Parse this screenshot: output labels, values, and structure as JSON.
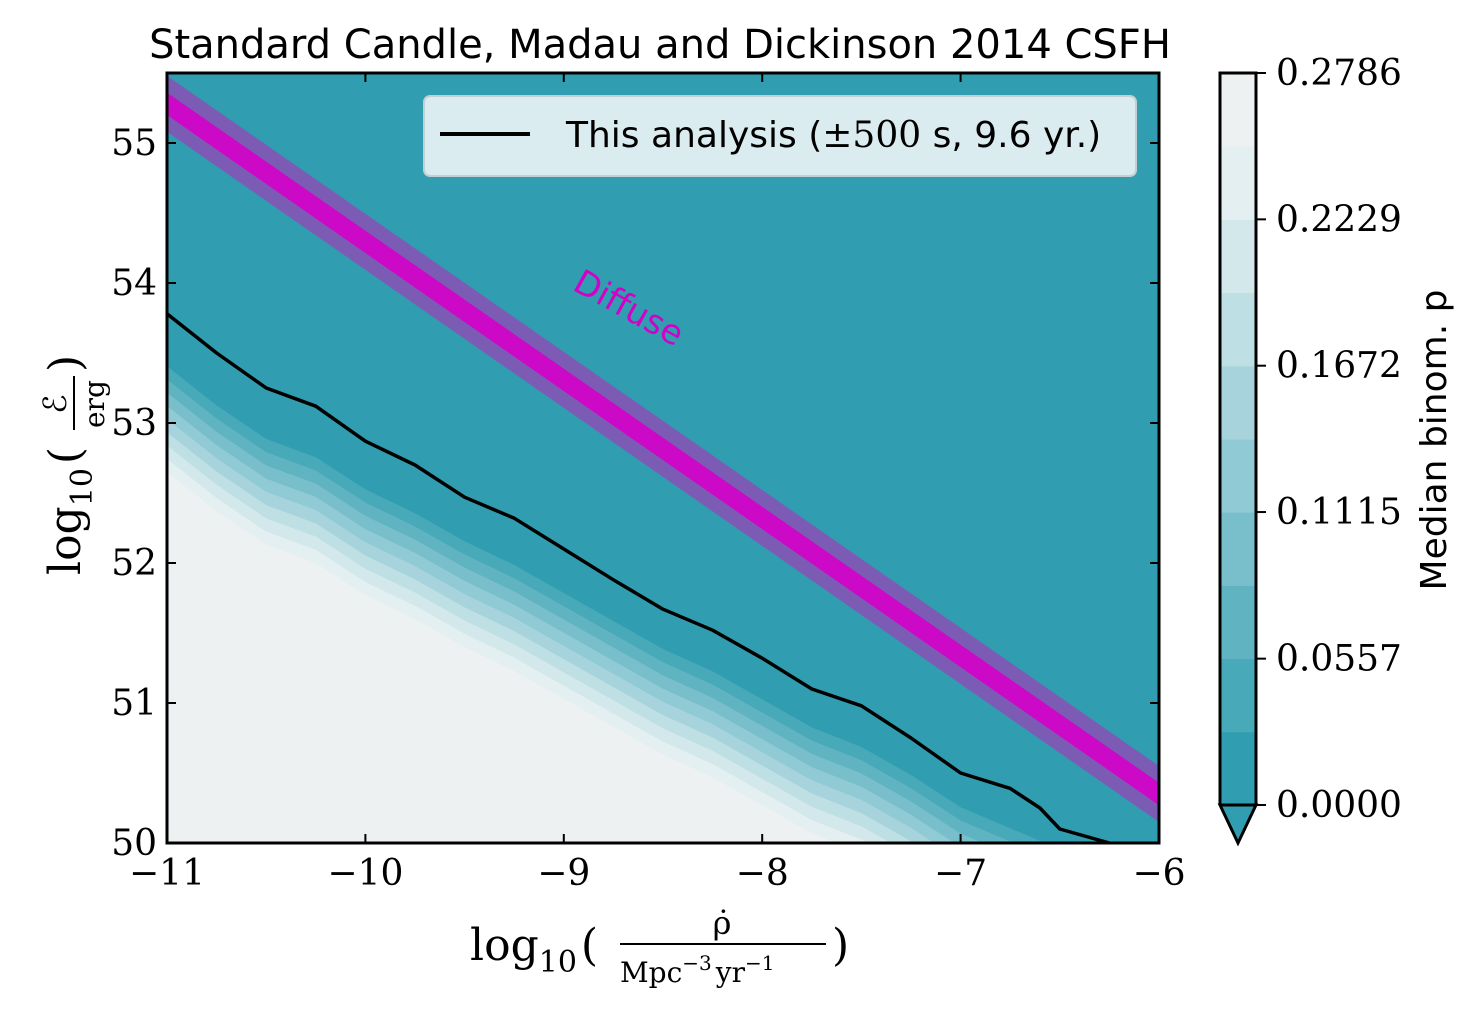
{
  "chart_data": {
    "type": "contour",
    "title": "Standard Candle, Madau and Dickinson 2014 CSFH",
    "xlabel_math": {
      "log": "log",
      "sub": "10",
      "num": "ρ̇",
      "den_base": "Mpc",
      "den_exp": "−3",
      "den_base2": "yr",
      "den_exp2": "−1"
    },
    "ylabel_math": {
      "log": "log",
      "sub": "10",
      "num": "ℰ",
      "den": "erg"
    },
    "xlim": [
      -11,
      -6
    ],
    "ylim": [
      50,
      55.5
    ],
    "x_ticks": [
      -11,
      -10,
      -9,
      -8,
      -7,
      -6
    ],
    "x_tick_labels": [
      "−11",
      "−10",
      "−9",
      "−8",
      "−7",
      "−6"
    ],
    "y_ticks": [
      50,
      51,
      52,
      53,
      54,
      55
    ],
    "y_tick_labels": [
      "50",
      "51",
      "52",
      "53",
      "54",
      "55"
    ],
    "legend": {
      "placement": "top-right",
      "entries": [
        {
          "label_pre": "This analysis (",
          "label_math": "±500",
          "label_post": " s, 9.6 yr.)",
          "color": "#000000"
        }
      ]
    },
    "annotation": {
      "text": "Diffuse",
      "x": -8.7,
      "y": 53.75,
      "color": "#d400c8"
    },
    "colorbar": {
      "label": "Median binom. p",
      "ticks": [
        0.0,
        0.0557,
        0.1115,
        0.1672,
        0.2229,
        0.2786
      ],
      "tick_labels": [
        "0.0000",
        "0.0557",
        "0.1115",
        "0.1672",
        "0.2229",
        "0.2786"
      ],
      "levels": 10,
      "colors": [
        "#309eb0",
        "#48a9b9",
        "#60b4c2",
        "#78bfcb",
        "#90cad4",
        "#a7d4dc",
        "#bedfe4",
        "#d3e8eb",
        "#e3eff0",
        "#edf1f2"
      ]
    },
    "series": [
      {
        "name": "This analysis",
        "type": "line",
        "color": "#000000",
        "x": [
          -11.0,
          -10.75,
          -10.5,
          -10.25,
          -10.0,
          -9.75,
          -9.5,
          -9.25,
          -9.0,
          -8.75,
          -8.5,
          -8.25,
          -8.0,
          -7.75,
          -7.5,
          -7.25,
          -7.0,
          -6.75,
          -6.6,
          -6.5,
          -6.25
        ],
        "y": [
          53.78,
          53.5,
          53.25,
          53.12,
          52.87,
          52.7,
          52.47,
          52.32,
          52.1,
          51.88,
          51.67,
          51.52,
          51.32,
          51.1,
          50.98,
          50.75,
          50.5,
          50.39,
          50.25,
          50.1,
          50.0
        ]
      },
      {
        "name": "Diffuse",
        "type": "band",
        "color": "#d400c8",
        "center": [
          [
            -11.0,
            55.28
          ],
          [
            -6.0,
            50.35
          ]
        ],
        "inner_halfwidth": 0.08,
        "outer_halfwidth": 0.2
      }
    ],
    "transition_edge": {
      "x": [
        -11.0,
        -10.75,
        -10.5,
        -10.25,
        -10.0,
        -9.75,
        -9.5,
        -9.25,
        -9.0,
        -8.75,
        -8.5,
        -8.25,
        -8.0,
        -7.75,
        -7.5,
        -7.25,
        -7.0,
        -6.75,
        -6.5,
        -6.25,
        -6.0
      ],
      "y": [
        53.5,
        53.22,
        52.98,
        52.85,
        52.62,
        52.45,
        52.25,
        52.08,
        51.88,
        51.68,
        51.48,
        51.32,
        51.12,
        50.92,
        50.78,
        50.58,
        50.35,
        50.2,
        50.05,
        49.95,
        49.85
      ]
    },
    "transition_width": 0.85
  }
}
